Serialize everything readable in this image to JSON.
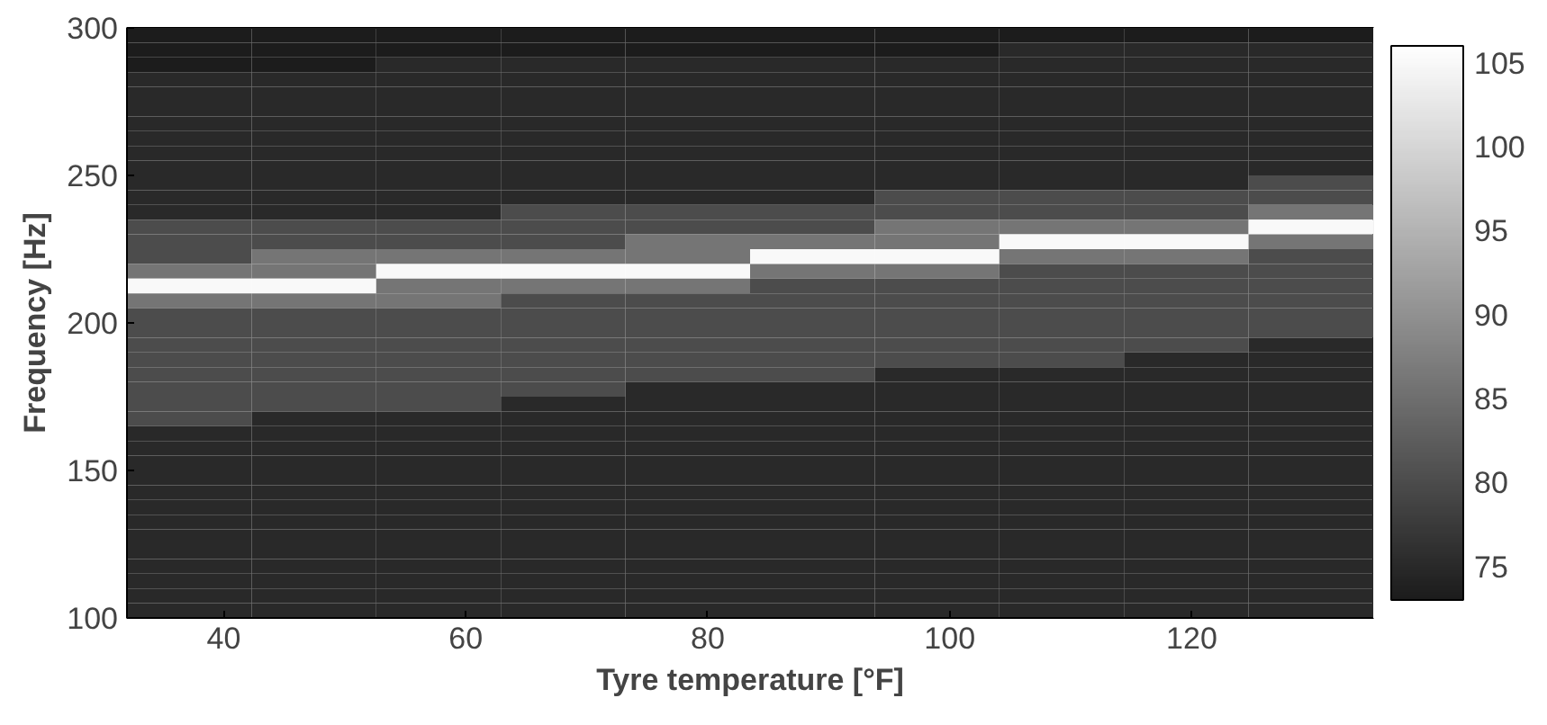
{
  "chart_data": {
    "type": "heatmap",
    "xlabel": "Tyre temperature [°F]",
    "ylabel": "Frequency [Hz]",
    "x": [
      37.15,
      47.45,
      57.75,
      68.05,
      78.35,
      88.65,
      98.95,
      109.25,
      119.55,
      129.85
    ],
    "y": [
      297.5,
      292.5,
      287.5,
      282.5,
      277.5,
      272.5,
      267.5,
      262.5,
      257.5,
      252.5,
      247.5,
      242.5,
      237.5,
      232.5,
      227.5,
      222.5,
      217.5,
      212.5,
      207.5,
      202.5,
      197.5,
      192.5,
      187.5,
      182.5,
      177.5,
      172.5,
      167.5,
      162.5,
      157.5,
      152.5,
      147.5,
      142.5,
      137.5,
      132.5,
      127.5,
      122.5,
      117.5,
      112.5,
      107.5,
      102.5
    ],
    "cells": [
      [
        73,
        73,
        73,
        73,
        73,
        73,
        73,
        73,
        73,
        73
      ],
      [
        73,
        73,
        73,
        73,
        73,
        73,
        73,
        75,
        75,
        75
      ],
      [
        73,
        73,
        75,
        75,
        75,
        75,
        75,
        75,
        75,
        75
      ],
      [
        75,
        75,
        75,
        75,
        75,
        75,
        75,
        75,
        75,
        75
      ],
      [
        75,
        75,
        75,
        75,
        75,
        75,
        75,
        75,
        75,
        75
      ],
      [
        75,
        75,
        75,
        75,
        75,
        75,
        75,
        75,
        75,
        75
      ],
      [
        75,
        75,
        75,
        75,
        75,
        75,
        75,
        75,
        75,
        75
      ],
      [
        75,
        75,
        75,
        75,
        75,
        75,
        75,
        75,
        75,
        75
      ],
      [
        75,
        75,
        75,
        75,
        75,
        75,
        75,
        75,
        75,
        75
      ],
      [
        75,
        75,
        75,
        75,
        75,
        75,
        75,
        75,
        75,
        75
      ],
      [
        75,
        75,
        75,
        75,
        75,
        75,
        75,
        75,
        75,
        80
      ],
      [
        75,
        75,
        75,
        75,
        75,
        75,
        80,
        80,
        80,
        80
      ],
      [
        75,
        75,
        75,
        80,
        80,
        80,
        80,
        80,
        80,
        86
      ],
      [
        80,
        80,
        80,
        80,
        80,
        80,
        86,
        86,
        86,
        105
      ],
      [
        80,
        80,
        80,
        80,
        86,
        86,
        86,
        105,
        105,
        86
      ],
      [
        80,
        86,
        86,
        86,
        86,
        105,
        105,
        86,
        86,
        80
      ],
      [
        86,
        86,
        105,
        105,
        105,
        86,
        86,
        80,
        80,
        80
      ],
      [
        105,
        105,
        86,
        86,
        86,
        80,
        80,
        80,
        80,
        80
      ],
      [
        86,
        86,
        86,
        80,
        80,
        80,
        80,
        80,
        80,
        80
      ],
      [
        80,
        80,
        80,
        80,
        80,
        80,
        80,
        80,
        80,
        80
      ],
      [
        80,
        80,
        80,
        80,
        80,
        80,
        80,
        80,
        80,
        80
      ],
      [
        80,
        80,
        80,
        80,
        80,
        80,
        80,
        80,
        80,
        75
      ],
      [
        80,
        80,
        80,
        80,
        80,
        80,
        80,
        80,
        75,
        75
      ],
      [
        80,
        80,
        80,
        80,
        80,
        80,
        75,
        75,
        75,
        75
      ],
      [
        80,
        80,
        80,
        80,
        75,
        75,
        75,
        75,
        75,
        75
      ],
      [
        80,
        80,
        80,
        75,
        75,
        75,
        75,
        75,
        75,
        75
      ],
      [
        80,
        75,
        75,
        75,
        75,
        75,
        75,
        75,
        75,
        75
      ],
      [
        75,
        75,
        75,
        75,
        75,
        75,
        75,
        75,
        75,
        75
      ],
      [
        75,
        75,
        75,
        75,
        75,
        75,
        75,
        75,
        75,
        75
      ],
      [
        75,
        75,
        75,
        75,
        75,
        75,
        75,
        75,
        75,
        75
      ],
      [
        75,
        75,
        75,
        75,
        75,
        75,
        75,
        75,
        75,
        75
      ],
      [
        75,
        75,
        75,
        75,
        75,
        75,
        75,
        75,
        75,
        75
      ],
      [
        75,
        75,
        75,
        75,
        75,
        75,
        75,
        75,
        75,
        75
      ],
      [
        75,
        75,
        75,
        75,
        75,
        75,
        75,
        75,
        75,
        75
      ],
      [
        75,
        75,
        75,
        75,
        75,
        75,
        75,
        75,
        75,
        75
      ],
      [
        75,
        75,
        75,
        75,
        75,
        75,
        75,
        75,
        75,
        75
      ],
      [
        75,
        75,
        75,
        75,
        75,
        75,
        75,
        75,
        75,
        75
      ],
      [
        75,
        75,
        75,
        75,
        75,
        75,
        75,
        75,
        75,
        75
      ],
      [
        75,
        75,
        75,
        75,
        75,
        75,
        75,
        75,
        75,
        75
      ],
      [
        75,
        75,
        75,
        75,
        75,
        75,
        75,
        75,
        75,
        75
      ]
    ],
    "colors": [
      "#1c1c1c",
      "#ffffff"
    ],
    "xlim": [
      32,
      135
    ],
    "xticks": [
      40,
      60,
      80,
      100,
      120
    ],
    "ylim": [
      100,
      300
    ],
    "yticks": [
      100,
      150,
      200,
      250,
      300
    ],
    "clim": [
      73,
      106
    ],
    "cticks": [
      75,
      80,
      85,
      90,
      95,
      100,
      105
    ],
    "grid": false
  }
}
